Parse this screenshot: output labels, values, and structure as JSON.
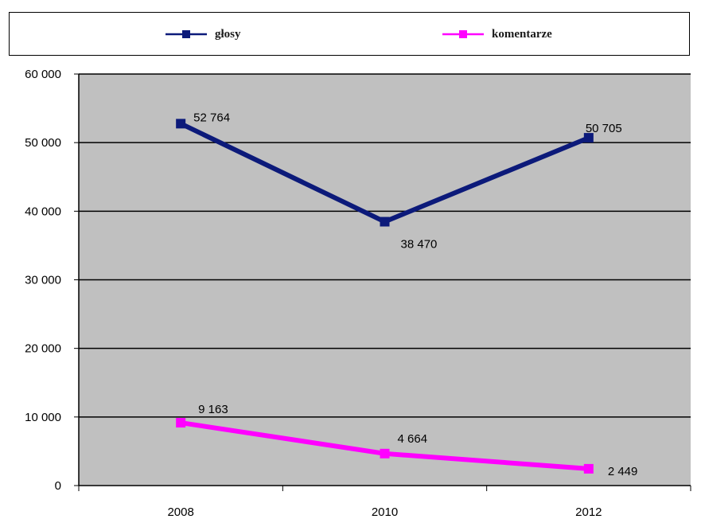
{
  "chart_data": {
    "type": "line",
    "categories": [
      "2008",
      "2010",
      "2012"
    ],
    "series": [
      {
        "name": "głosy",
        "values": [
          52764,
          38470,
          50705
        ],
        "labels": [
          "52 764",
          "38 470",
          "50 705"
        ],
        "color": "#0c1a7a"
      },
      {
        "name": "komentarze",
        "values": [
          9163,
          4664,
          2449
        ],
        "labels": [
          "9 163",
          "4 664",
          "2 449"
        ],
        "color": "#ff00ff"
      }
    ],
    "ylim": [
      0,
      60000
    ],
    "yticks": [
      0,
      10000,
      20000,
      30000,
      40000,
      50000,
      60000
    ],
    "ytick_labels": [
      "0",
      "10 000",
      "20 000",
      "30 000",
      "40 000",
      "50 000",
      "60 000"
    ],
    "grid": true,
    "legend_position": "top",
    "plot_background": "#c0c0c0",
    "title": "",
    "xlabel": "",
    "ylabel": ""
  }
}
